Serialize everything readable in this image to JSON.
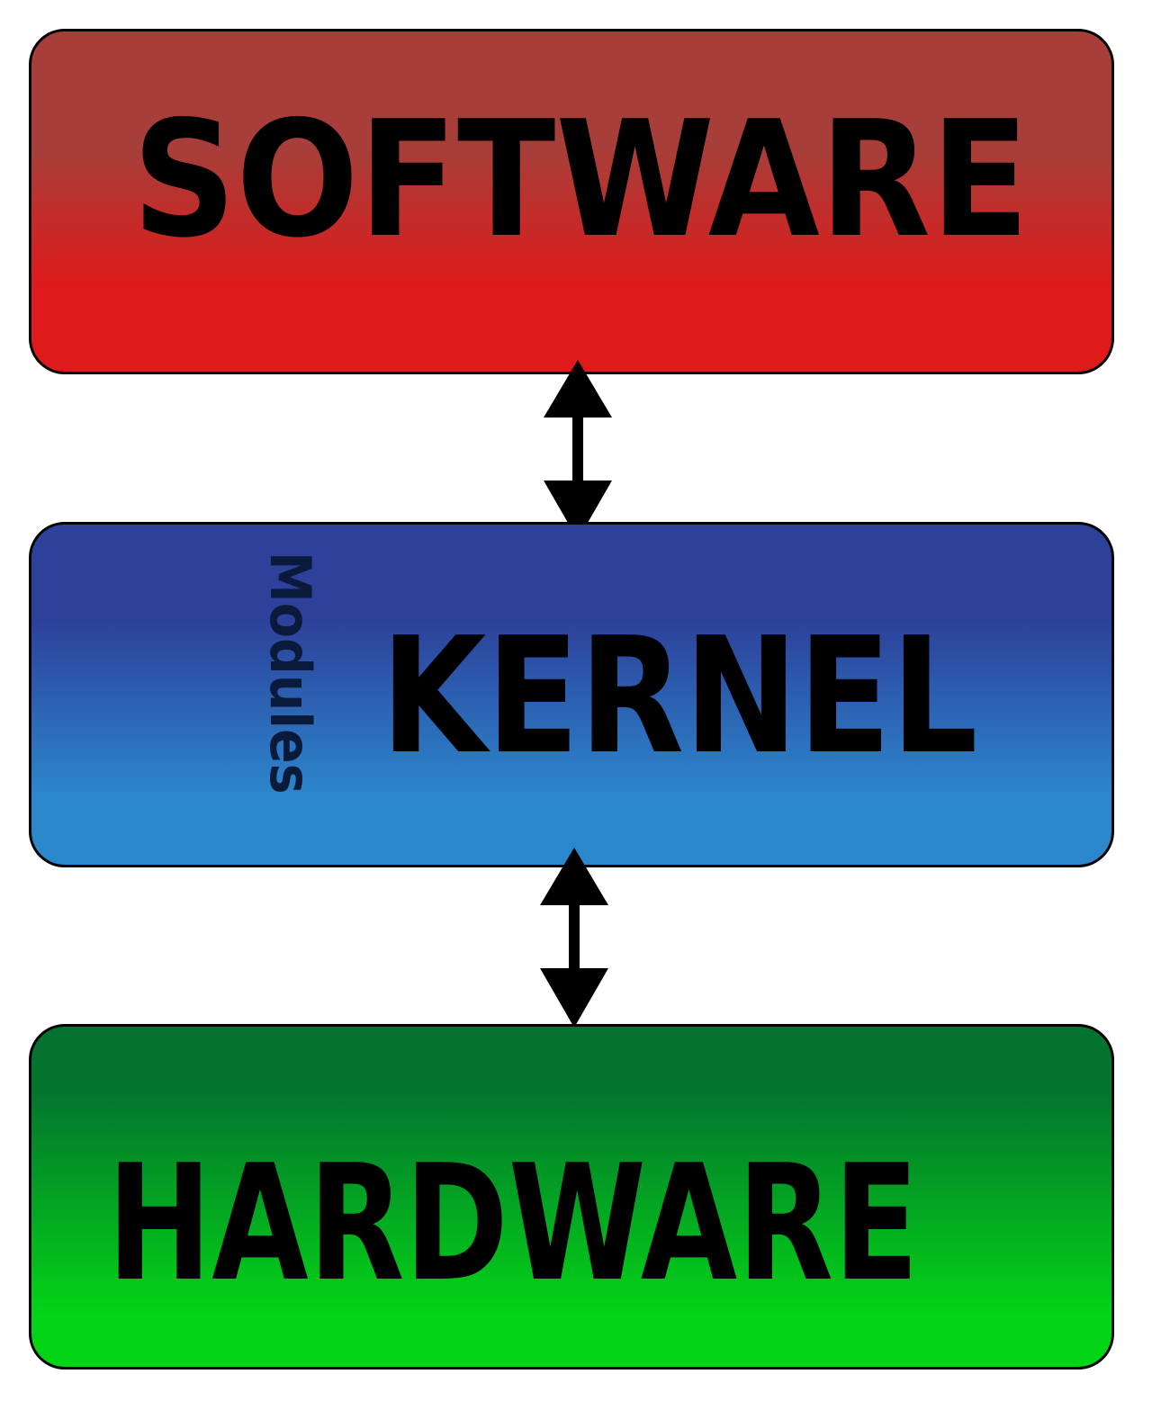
{
  "diagram": {
    "layers": {
      "software": {
        "label": "SOFTWARE",
        "color_top": "#a83e39",
        "color_bottom": "#de1a1a"
      },
      "kernel": {
        "label": "KERNEL",
        "sublabel": "Modules",
        "color_top": "#2d409a",
        "color_bottom": "#2b87cc"
      },
      "hardware": {
        "label": "HARDWARE",
        "color_top": "#03732f",
        "color_bottom": "#03d416"
      }
    },
    "connectors": [
      {
        "from": "software",
        "to": "kernel",
        "direction": "bidirectional"
      },
      {
        "from": "kernel",
        "to": "hardware",
        "direction": "bidirectional"
      }
    ]
  }
}
